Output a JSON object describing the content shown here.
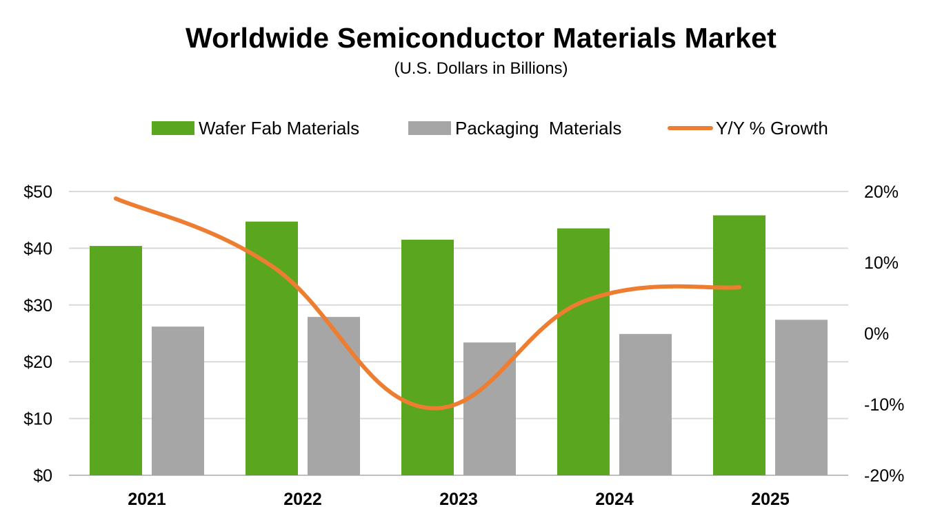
{
  "chart_data": {
    "type": "bar",
    "title": "Worldwide Semiconductor Materials Market",
    "subtitle": "(U.S. Dollars in Billions)",
    "categories": [
      "2021",
      "2022",
      "2023",
      "2024",
      "2025"
    ],
    "series": [
      {
        "name": "Wafer Fab Materials",
        "type": "bar",
        "axis": "left",
        "color": "#5aa61e",
        "values": [
          40.4,
          44.7,
          41.5,
          43.5,
          45.8
        ]
      },
      {
        "name": "Packaging  Materials",
        "type": "bar",
        "axis": "left",
        "color": "#a6a6a6",
        "values": [
          26.2,
          27.9,
          23.4,
          24.9,
          27.4
        ]
      },
      {
        "name": "Y/Y % Growth",
        "type": "line",
        "axis": "right",
        "color": "#ed7d31",
        "values": [
          19,
          9.5,
          -10.5,
          4.5,
          6.5
        ]
      }
    ],
    "y_left": {
      "min": 0,
      "max": 50,
      "step": 10,
      "tick_labels": [
        "$0",
        "$10",
        "$20",
        "$30",
        "$40",
        "$50"
      ]
    },
    "y_right": {
      "min": -20,
      "max": 20,
      "step": 10,
      "tick_labels": [
        "-20%",
        "-10%",
        "0%",
        "10%",
        "20%"
      ]
    },
    "grid": true,
    "legend_position": "top"
  }
}
